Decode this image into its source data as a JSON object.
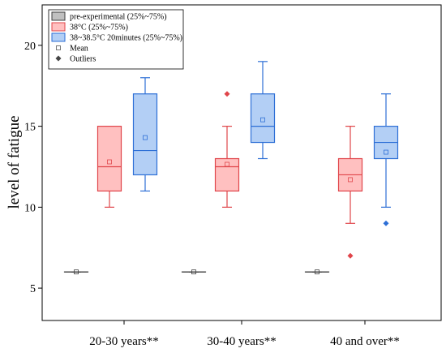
{
  "chart_data": {
    "type": "box",
    "ylabel": "level of fatigue",
    "xlabel": "",
    "ylim": [
      3,
      22.5
    ],
    "yticks": [
      5,
      10,
      15,
      20
    ],
    "ytick_labels": [
      "5",
      "10",
      "15",
      "20"
    ],
    "categories": [
      "20-30 years**",
      "30-40 years**",
      "40 and over**"
    ],
    "legend": {
      "placement": "top-left",
      "entries": [
        {
          "label": "pre-experimental (25%~75%)",
          "kind": "box",
          "fill": "#c0c0c0",
          "stroke": "#404040"
        },
        {
          "label": "38°C (25%~75%)",
          "kind": "box",
          "fill": "#ffc0c0",
          "stroke": "#e0454a"
        },
        {
          "label": "38~38.5°C 20minutes (25%~75%)",
          "kind": "box",
          "fill": "#b3cff5",
          "stroke": "#2d6fd6"
        },
        {
          "label": "Mean",
          "kind": "mean"
        },
        {
          "label": "Outliers",
          "kind": "outlier"
        }
      ]
    },
    "series": [
      {
        "name": "pre-experimental (25%~75%)",
        "fill": "#c0c0c0",
        "stroke": "#404040",
        "boxes": [
          {
            "whisker_low": 6,
            "q1": 6,
            "median": 6,
            "q3": 6,
            "whisker_high": 6,
            "mean": 6,
            "outliers": []
          },
          {
            "whisker_low": 6,
            "q1": 6,
            "median": 6,
            "q3": 6,
            "whisker_high": 6,
            "mean": 6,
            "outliers": []
          },
          {
            "whisker_low": 6,
            "q1": 6,
            "median": 6,
            "q3": 6,
            "whisker_high": 6,
            "mean": 6,
            "outliers": []
          }
        ]
      },
      {
        "name": "38°C (25%~75%)",
        "fill": "#ffc0c0",
        "stroke": "#e0454a",
        "boxes": [
          {
            "whisker_low": 10,
            "q1": 11,
            "median": 12.5,
            "q3": 15,
            "whisker_high": 15,
            "mean": 12.8,
            "outliers": []
          },
          {
            "whisker_low": 10,
            "q1": 11,
            "median": 12.5,
            "q3": 13,
            "whisker_high": 15,
            "mean": 12.65,
            "outliers": [
              17
            ]
          },
          {
            "whisker_low": 9,
            "q1": 11,
            "median": 12,
            "q3": 13,
            "whisker_high": 15,
            "mean": 11.7,
            "outliers": [
              7
            ]
          }
        ]
      },
      {
        "name": "38~38.5°C 20minutes (25%~75%)",
        "fill": "#b3cff5",
        "stroke": "#2d6fd6",
        "boxes": [
          {
            "whisker_low": 11,
            "q1": 12,
            "median": 13.5,
            "q3": 17,
            "whisker_high": 18,
            "mean": 14.3,
            "outliers": []
          },
          {
            "whisker_low": 13,
            "q1": 14,
            "median": 15,
            "q3": 17,
            "whisker_high": 19,
            "mean": 15.4,
            "outliers": []
          },
          {
            "whisker_low": 10,
            "q1": 13,
            "median": 14,
            "q3": 15,
            "whisker_high": 17,
            "mean": 13.4,
            "outliers": [
              9
            ]
          }
        ]
      }
    ]
  }
}
